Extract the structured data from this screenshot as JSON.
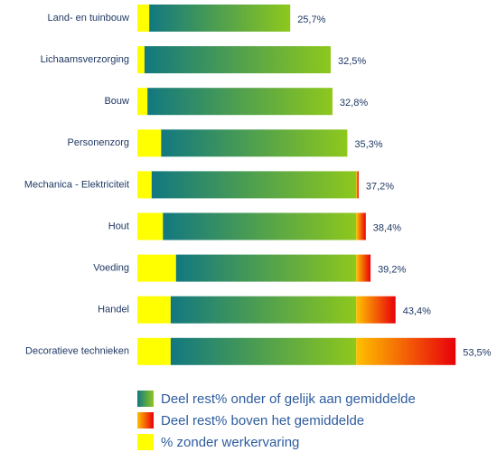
{
  "chart_data": {
    "type": "stacked-barh",
    "categories": [
      "Land- en tuinbouw",
      "Lichaamsverzorging",
      "Bouw",
      "Personenzorg",
      "Mechanica - Elektriciteit",
      "Hout",
      "Voeding",
      "Handel",
      "Decoratieve technieken"
    ],
    "series": [
      {
        "name": "Deel rest% onder of gelijk aan gemiddelde",
        "color": [
          "#127880",
          "#8ec81c"
        ],
        "values": [
          23.7,
          31.3,
          31.1,
          31.3,
          34.4,
          32.5,
          30.3,
          31.2,
          31.2
        ]
      },
      {
        "name": "Deel rest% boven het gemiddelde",
        "color": [
          "#ffc000",
          "#e8000b"
        ],
        "values": [
          0,
          0,
          0,
          0,
          0.4,
          1.6,
          2.4,
          6.6,
          16.7
        ]
      },
      {
        "name": "% zonder werkervaring",
        "color": [
          "#ffff00",
          "#ffff00"
        ],
        "values": [
          2.0,
          1.2,
          1.7,
          4.0,
          2.4,
          4.3,
          6.5,
          5.6,
          5.6
        ]
      }
    ],
    "totals": [
      25.7,
      32.5,
      32.8,
      35.3,
      37.2,
      38.4,
      39.2,
      43.4,
      53.5
    ],
    "total_labels": [
      "25,7%",
      "32,5%",
      "32,8%",
      "35,3%",
      "37,2%",
      "38,4%",
      "39,2%",
      "43,4%",
      "53,5%"
    ],
    "xlim": [
      0,
      60
    ]
  }
}
